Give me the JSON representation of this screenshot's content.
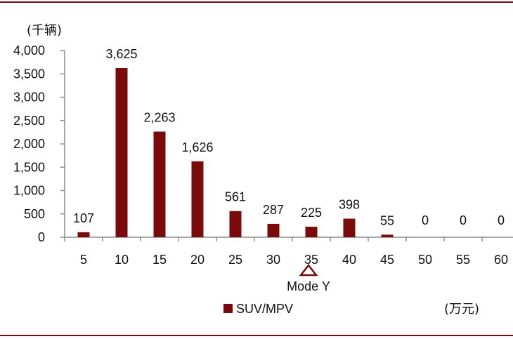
{
  "colors": {
    "bar": "#7b0a0a",
    "frame_line": "#7b0a0a",
    "axis": "#8c8c8c",
    "marker": "#7b0a0a"
  },
  "chart_data": {
    "type": "bar",
    "categories": [
      "5",
      "10",
      "15",
      "20",
      "25",
      "30",
      "35",
      "40",
      "45",
      "50",
      "55",
      "60"
    ],
    "series": [
      {
        "name": "SUV/MPV",
        "values": [
          107,
          3625,
          2263,
          1626,
          561,
          287,
          225,
          398,
          55,
          0,
          0,
          0
        ],
        "labels": [
          "107",
          "3,625",
          "2,263",
          "1,626",
          "561",
          "287",
          "225",
          "398",
          "55",
          "0",
          "0",
          "0"
        ]
      }
    ],
    "y_unit": "(千辆)",
    "x_unit": "(万元)",
    "ylim": [
      0,
      4000
    ],
    "yticks": [
      {
        "value": 0,
        "label": "0"
      },
      {
        "value": 500,
        "label": "500"
      },
      {
        "value": 1000,
        "label": "1,000"
      },
      {
        "value": 1500,
        "label": "1,500"
      },
      {
        "value": 2000,
        "label": "2,000"
      },
      {
        "value": 2500,
        "label": "2,500"
      },
      {
        "value": 3000,
        "label": "3,000"
      },
      {
        "value": 3500,
        "label": "3,500"
      },
      {
        "value": 4000,
        "label": "4,000"
      }
    ],
    "grid": false,
    "legend_position": "bottom-center",
    "annotation": {
      "category": "35",
      "label": "Mode Y",
      "marker": "triangle-outline"
    }
  }
}
